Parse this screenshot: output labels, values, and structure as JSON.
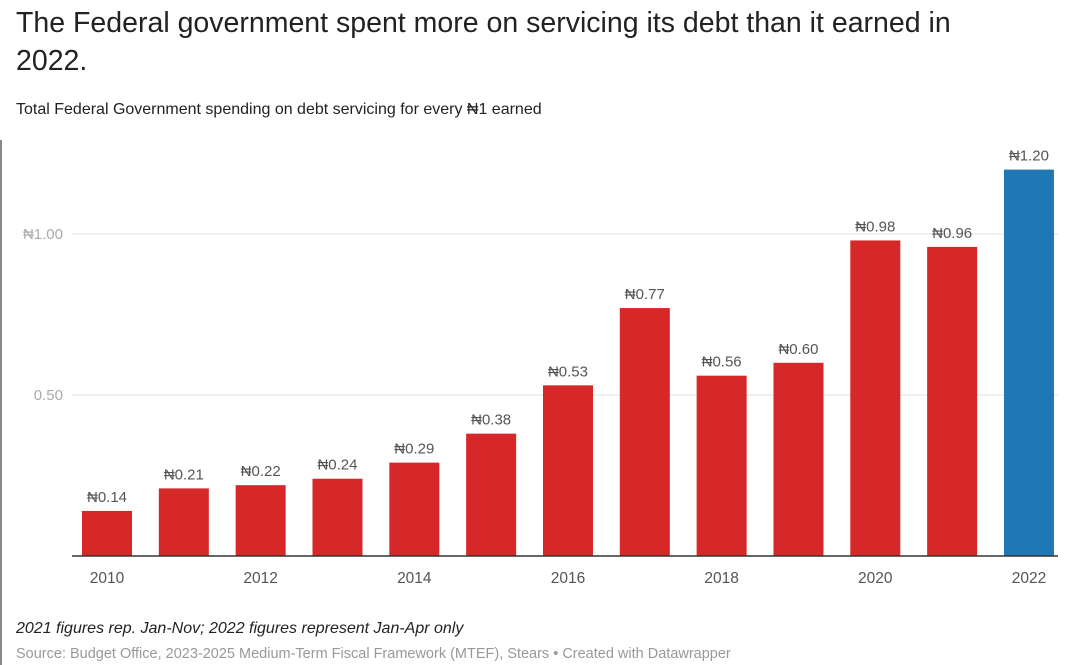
{
  "chart_data": {
    "type": "bar",
    "title": "The Federal government spent more on servicing its debt than it earned in 2022.",
    "subtitle": "Total Federal Government spending on debt servicing for every ₦1 earned",
    "categories": [
      "2010",
      "2011",
      "2012",
      "2013",
      "2014",
      "2015",
      "2016",
      "2017",
      "2018",
      "2019",
      "2020",
      "2021",
      "2022"
    ],
    "values": [
      0.14,
      0.21,
      0.22,
      0.24,
      0.29,
      0.38,
      0.53,
      0.77,
      0.56,
      0.6,
      0.98,
      0.96,
      1.2
    ],
    "data_labels": [
      "₦0.14",
      "₦0.21",
      "₦0.22",
      "₦0.24",
      "₦0.29",
      "₦0.38",
      "₦0.53",
      "₦0.77",
      "₦0.56",
      "₦0.60",
      "₦0.98",
      "₦0.96",
      "₦1.20"
    ],
    "x_tick_labels": [
      "2010",
      "",
      "2012",
      "",
      "2014",
      "",
      "2016",
      "",
      "2018",
      "",
      "2020",
      "",
      "2022"
    ],
    "y_ticks": [
      {
        "value": 1.0,
        "label": "₦1.00"
      },
      {
        "value": 0.5,
        "label": "0.50"
      }
    ],
    "ylim": [
      0,
      1.2
    ],
    "grid": true,
    "colors": {
      "default": "#d62828",
      "highlight": "#1f77b4"
    },
    "highlight_index": 12,
    "note": "2021 figures rep. Jan-Nov; 2022 figures represent Jan-Apr only",
    "source": "Source: Budget Office, 2023-2025 Medium-Term Fiscal Framework (MTEF), Stears • Created with Datawrapper"
  }
}
